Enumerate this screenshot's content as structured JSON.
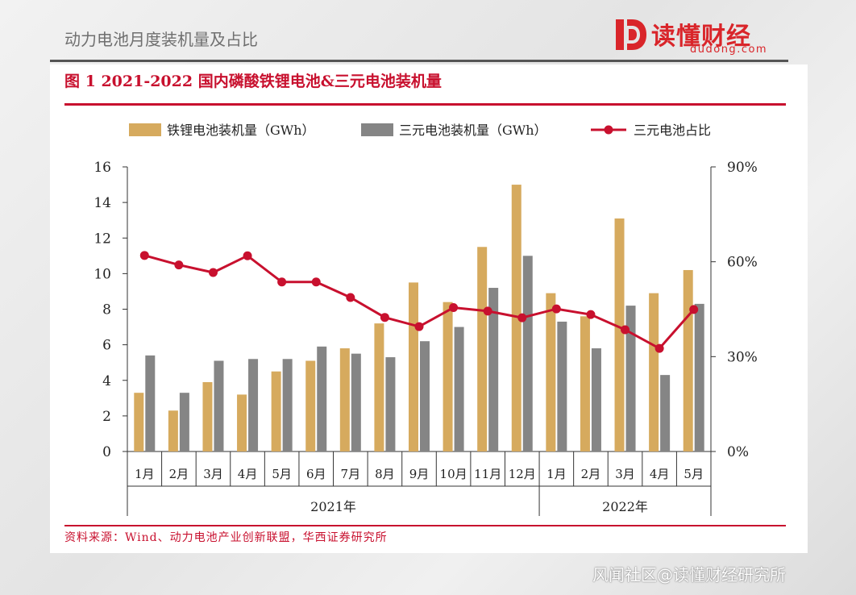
{
  "slide": {
    "title": "动力电池月度装机量及占比"
  },
  "brand": {
    "name": "读懂财经",
    "url": "dudong.com",
    "color": "#d9252a"
  },
  "figure": {
    "title": "图 1 2021-2022 国内磷酸铁锂电池&三元电池装机量",
    "source": "资料来源：Wind、动力电池产业创新联盟，华西证券研究所",
    "accent": "#c8102e"
  },
  "watermark": "风闻社区@读懂财经研究所",
  "chart_data": {
    "type": "bar",
    "title": "2021-2022 国内磷酸铁锂电池&三元电池装机量",
    "categories": [
      "1月",
      "2月",
      "3月",
      "4月",
      "5月",
      "6月",
      "7月",
      "8月",
      "9月",
      "10月",
      "11月",
      "12月",
      "1月",
      "2月",
      "3月",
      "4月",
      "5月"
    ],
    "groups": [
      {
        "label": "2021年",
        "start": 0,
        "end": 11
      },
      {
        "label": "2022年",
        "start": 12,
        "end": 16
      }
    ],
    "series": [
      {
        "name": "铁锂电池装机量（GWh）",
        "kind": "bar",
        "axis": "left",
        "color": "#d6aa5e",
        "values": [
          3.3,
          2.3,
          3.9,
          3.2,
          4.5,
          5.1,
          5.8,
          7.2,
          9.5,
          8.4,
          11.5,
          15.0,
          8.9,
          7.6,
          13.1,
          8.9,
          10.2
        ]
      },
      {
        "name": "三元电池装机量（GWh）",
        "kind": "bar",
        "axis": "left",
        "color": "#858585",
        "values": [
          5.4,
          3.3,
          5.1,
          5.2,
          5.2,
          5.9,
          5.5,
          5.3,
          6.2,
          7.0,
          9.2,
          11.0,
          7.3,
          5.8,
          8.2,
          4.3,
          8.3
        ]
      },
      {
        "name": "三元电池占比",
        "kind": "line",
        "axis": "right",
        "color": "#c8102e",
        "values": [
          62.0,
          59.0,
          56.6,
          61.9,
          53.6,
          53.6,
          48.7,
          42.4,
          39.5,
          45.5,
          44.4,
          42.3,
          45.1,
          43.3,
          38.5,
          32.6,
          44.9
        ]
      }
    ],
    "yleft": {
      "min": 0,
      "max": 16,
      "ticks": [
        "0",
        "2",
        "4",
        "6",
        "8",
        "10",
        "12",
        "14",
        "16"
      ]
    },
    "yright": {
      "min": 0,
      "max": 90,
      "ticks": [
        "0%",
        "30%",
        "60%",
        "90%"
      ]
    },
    "legend": "top"
  }
}
